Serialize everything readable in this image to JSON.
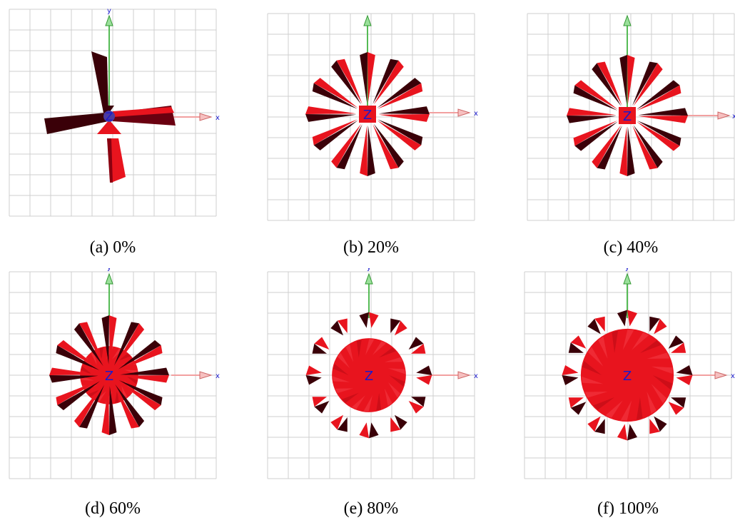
{
  "axis_labels": {
    "x": "x",
    "y": "y",
    "z": "Z"
  },
  "colors": {
    "light_red": "#e8141e",
    "dark_red": "#3a0008",
    "grid": "#cfcfcf",
    "y_axis": "#55bb55",
    "x_axis": "#f2a0a0",
    "axis_letter": "#1a1acc"
  },
  "panels": [
    {
      "caption": "(a) 0%",
      "progress": 0
    },
    {
      "caption": "(b) 20%",
      "progress": 0.2
    },
    {
      "caption": "(c) 40%",
      "progress": 0.4
    },
    {
      "caption": "(d) 60%",
      "progress": 0.6
    },
    {
      "caption": "(e) 80%",
      "progress": 0.8
    },
    {
      "caption": "(f) 100%",
      "progress": 1.0
    }
  ]
}
